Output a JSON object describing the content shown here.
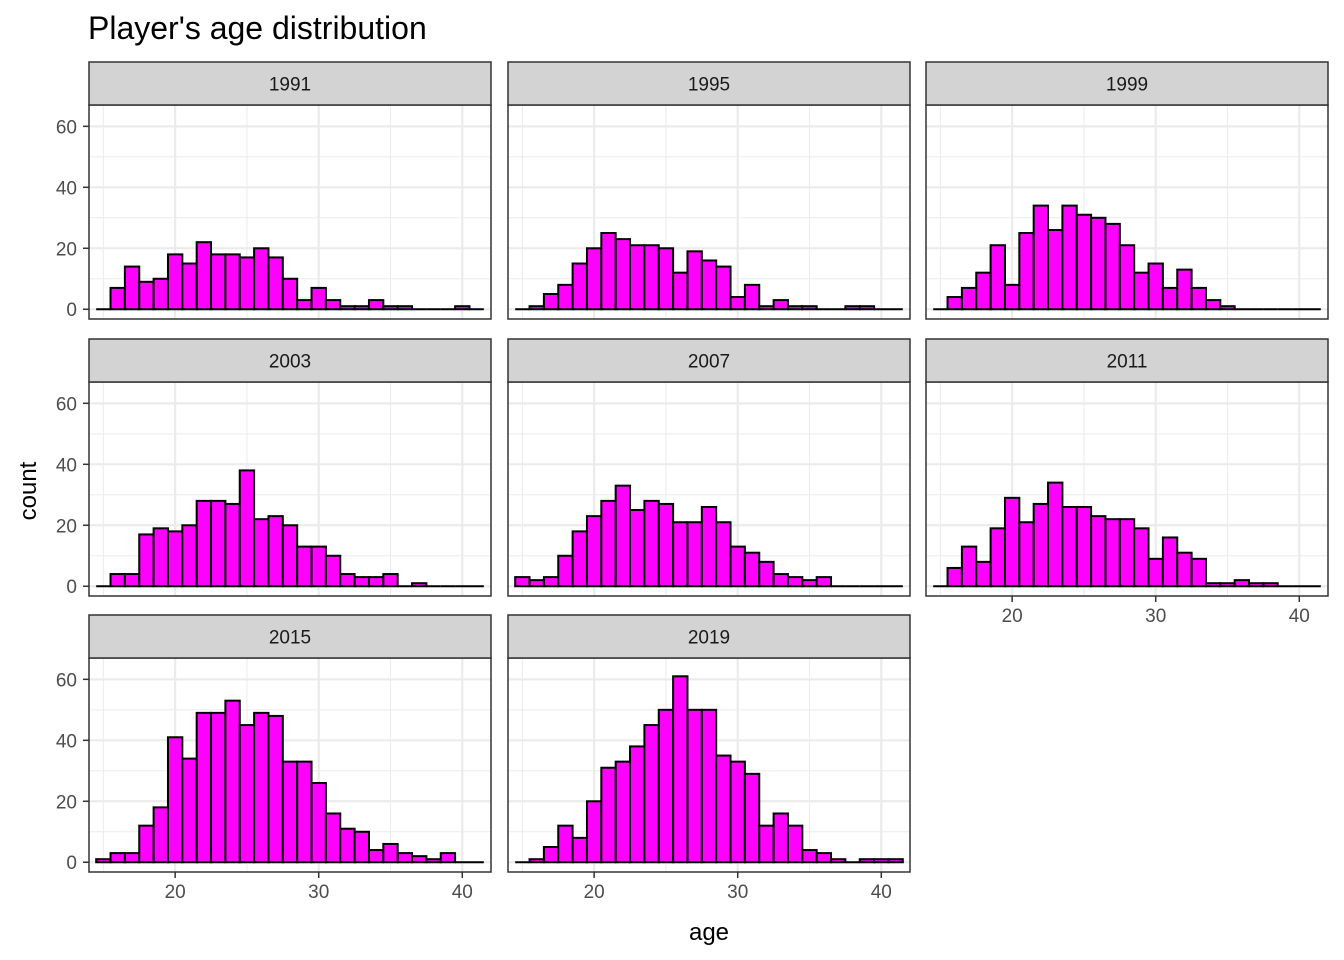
{
  "chart_data": {
    "type": "bar",
    "title": "Player's age distribution",
    "xlabel": "age",
    "ylabel": "count",
    "xlim": [
      14,
      42
    ],
    "ylim": [
      -3.2,
      67
    ],
    "x_ticks": [
      20,
      30,
      40
    ],
    "y_ticks": [
      0,
      20,
      40,
      60
    ],
    "bin_start": 14.5,
    "bin_width": 1,
    "fill_color": "#ff00ff",
    "outline_color": "#000000",
    "panel_border_color": "#333333",
    "strip_fill": "#d3d3d3",
    "grid_color": "#ebebeb",
    "grid": true,
    "panels": [
      {
        "label": "1991",
        "values": [
          0,
          7,
          14,
          9,
          10,
          18,
          15,
          22,
          18,
          18,
          17,
          20,
          17,
          10,
          3,
          7,
          3,
          1,
          1,
          3,
          1,
          1,
          0,
          0,
          0,
          1,
          0
        ]
      },
      {
        "label": "1995",
        "values": [
          0,
          1,
          5,
          8,
          15,
          20,
          25,
          23,
          21,
          21,
          20,
          12,
          19,
          16,
          14,
          4,
          8,
          1,
          3,
          1,
          1,
          0,
          0,
          1,
          1,
          0,
          0
        ]
      },
      {
        "label": "1999",
        "values": [
          0,
          4,
          7,
          12,
          21,
          8,
          25,
          34,
          26,
          34,
          31,
          30,
          28,
          21,
          12,
          15,
          7,
          13,
          7,
          3,
          1,
          0,
          0,
          0,
          0,
          0,
          0
        ]
      },
      {
        "label": "2003",
        "values": [
          0,
          4,
          4,
          17,
          19,
          18,
          20,
          28,
          28,
          27,
          38,
          22,
          23,
          20,
          13,
          13,
          10,
          4,
          3,
          3,
          4,
          0,
          1,
          0,
          0,
          0,
          0
        ]
      },
      {
        "label": "2007",
        "values": [
          3,
          2,
          3,
          10,
          18,
          23,
          28,
          33,
          25,
          28,
          27,
          21,
          21,
          26,
          21,
          13,
          11,
          8,
          4,
          3,
          2,
          3,
          0,
          0,
          0,
          0,
          0
        ]
      },
      {
        "label": "2011",
        "values": [
          0,
          6,
          13,
          8,
          19,
          29,
          21,
          27,
          34,
          26,
          26,
          23,
          22,
          22,
          19,
          9,
          16,
          11,
          9,
          1,
          1,
          2,
          1,
          1,
          0,
          0,
          0
        ]
      },
      {
        "label": "2015",
        "values": [
          1,
          3,
          3,
          12,
          18,
          41,
          34,
          49,
          49,
          53,
          45,
          49,
          48,
          33,
          33,
          26,
          16,
          11,
          10,
          4,
          6,
          3,
          2,
          1,
          3,
          0,
          0
        ]
      },
      {
        "label": "2019",
        "values": [
          0,
          1,
          5,
          12,
          8,
          20,
          31,
          33,
          38,
          45,
          50,
          61,
          50,
          50,
          35,
          33,
          29,
          12,
          16,
          12,
          4,
          3,
          1,
          0,
          1,
          1,
          1
        ]
      }
    ]
  }
}
